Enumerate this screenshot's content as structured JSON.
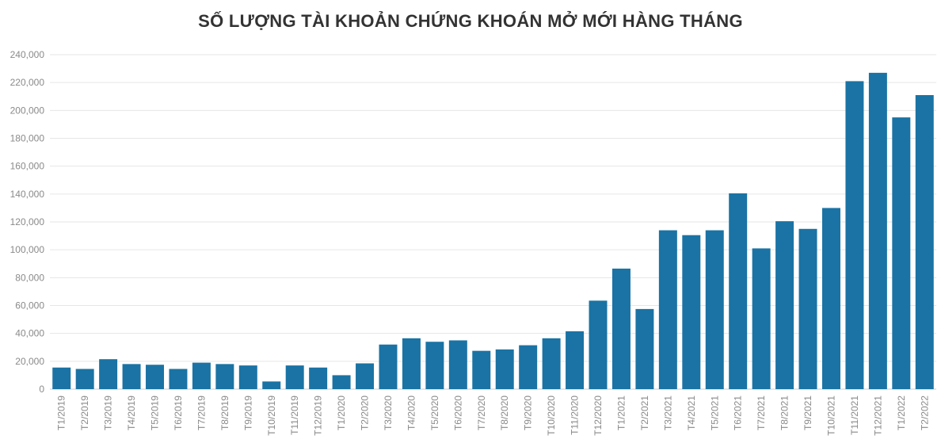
{
  "chart_data": {
    "type": "bar",
    "title": "SỐ LƯỢNG TÀI KHOẢN CHỨNG KHOÁN MỞ MỚI HÀNG THÁNG",
    "xlabel": "",
    "ylabel": "",
    "ylim": [
      0,
      240000
    ],
    "yticks": [
      "0",
      "20,000",
      "40,000",
      "60,000",
      "80,000",
      "100,000",
      "120,000",
      "140,000",
      "160,000",
      "180,000",
      "200,000",
      "220,000",
      "240,000"
    ],
    "ytick_values": [
      0,
      20000,
      40000,
      60000,
      80000,
      100000,
      120000,
      140000,
      160000,
      180000,
      200000,
      220000,
      240000
    ],
    "grid": true,
    "bar_color": "#1a73a4",
    "categories": [
      "T1/2019",
      "T2/2019",
      "T3/2019",
      "T4/2019",
      "T5/2019",
      "T6/2019",
      "T7/2019",
      "T8/2019",
      "T9/2019",
      "T10/2019",
      "T11/2019",
      "T12/2019",
      "T1/2020",
      "T2/2020",
      "T3/2020",
      "T4/2020",
      "T5/2020",
      "T6/2020",
      "T7/2020",
      "T8/2020",
      "T9/2020",
      "T10/2020",
      "T11/2020",
      "T12/2020",
      "T1/2021",
      "T2/2021",
      "T3/2021",
      "T4/2021",
      "T5/2021",
      "T6/2021",
      "T7/2021",
      "T8/2021",
      "T9/2021",
      "T10/2021",
      "T11/2021",
      "T12/2021",
      "T1/2022",
      "T2/2022"
    ],
    "values": [
      15500,
      14500,
      21500,
      18000,
      17500,
      14500,
      19000,
      18000,
      17000,
      5500,
      17000,
      15500,
      10000,
      18500,
      32000,
      36500,
      34000,
      35000,
      27500,
      28500,
      31500,
      36500,
      41500,
      63500,
      86500,
      57500,
      114000,
      110500,
      114000,
      140500,
      101000,
      120500,
      115000,
      130000,
      221000,
      227000,
      195000,
      211000
    ]
  }
}
